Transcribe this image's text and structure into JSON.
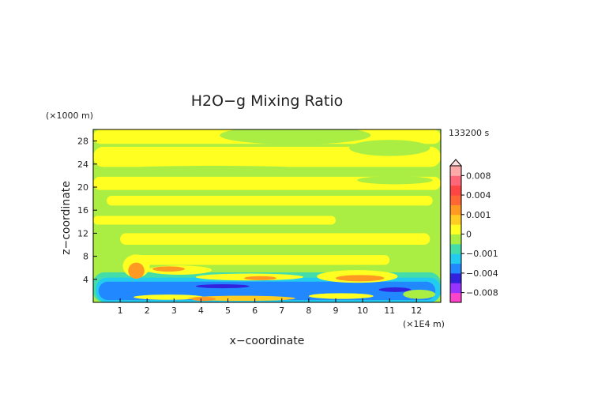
{
  "chart_data": {
    "type": "heatmap",
    "title": "H2O−g Mixing Ratio",
    "xlabel": "x−coordinate",
    "ylabel": "z−coordinate",
    "x_unit": "(×1E4 m)",
    "y_unit": "(×1000 m)",
    "time_label": "133200 s",
    "xlim": [
      0,
      12.9
    ],
    "ylim": [
      0,
      30
    ],
    "x_ticks": [
      "1",
      "2",
      "3",
      "4",
      "5",
      "6",
      "7",
      "8",
      "9",
      "10",
      "11",
      "12"
    ],
    "y_ticks": [
      "4",
      "8",
      "12",
      "16",
      "20",
      "24",
      "28"
    ],
    "colorbar": {
      "labels": [
        "0.008",
        "0.004",
        "0.001",
        "0",
        "−0.001",
        "−0.004",
        "−0.008"
      ],
      "label_values": [
        0.008,
        0.004,
        0.001,
        0,
        -0.001,
        -0.004,
        -0.008
      ],
      "levels": [
        -0.01,
        -0.008,
        -0.006,
        -0.004,
        -0.002,
        -0.001,
        -0.0005,
        0,
        0.0005,
        0.001,
        0.002,
        0.004,
        0.006,
        0.008,
        0.01
      ],
      "colors": [
        "#ff44cc",
        "#9933ff",
        "#3322dd",
        "#2288ff",
        "#22ccee",
        "#44ddaa",
        "#aaee44",
        "#ffff22",
        "#ffcc22",
        "#ff9922",
        "#ff6633",
        "#ff4444",
        "#ff6677",
        "#ffaaaa"
      ]
    },
    "field": {
      "background": "#aaee44",
      "x_range": [
        0,
        12.9
      ],
      "z_range": [
        0,
        30
      ],
      "regions": [
        {
          "kind": "band",
          "z0": 27.5,
          "z1": 30,
          "x0": 0,
          "x1": 12.9,
          "color": "#ffff22"
        },
        {
          "kind": "band",
          "z0": 23.5,
          "z1": 27,
          "x0": 0,
          "x1": 12.9,
          "color": "#ffff22"
        },
        {
          "kind": "band",
          "z0": 19.5,
          "z1": 21.8,
          "x0": 0,
          "x1": 12.9,
          "color": "#ffff22"
        },
        {
          "kind": "band",
          "z0": 16.8,
          "z1": 18.5,
          "x0": 0.5,
          "x1": 12.6,
          "color": "#ffff22"
        },
        {
          "kind": "band",
          "z0": 13.5,
          "z1": 15,
          "x0": 0,
          "x1": 9,
          "color": "#ffff22"
        },
        {
          "kind": "band",
          "z0": 10,
          "z1": 12,
          "x0": 1,
          "x1": 12.5,
          "color": "#ffff22"
        },
        {
          "kind": "band",
          "z0": 6.5,
          "z1": 8.2,
          "x0": 1.5,
          "x1": 11,
          "color": "#ffff22"
        },
        {
          "kind": "blob",
          "x": 7.5,
          "z": 29,
          "rx": 2.8,
          "rz": 1.6,
          "color": "#aaee44"
        },
        {
          "kind": "blob",
          "x": 11,
          "z": 26.8,
          "rx": 1.5,
          "rz": 1.4,
          "color": "#aaee44"
        },
        {
          "kind": "blob",
          "x": 4.5,
          "z": 23,
          "rx": 4,
          "rz": 0.7,
          "color": "#aaee44"
        },
        {
          "kind": "blob",
          "x": 11.2,
          "z": 21.2,
          "rx": 1.4,
          "rz": 0.7,
          "color": "#aaee44"
        },
        {
          "kind": "band",
          "z0": 0,
          "z1": 5.2,
          "x0": 0,
          "x1": 12.9,
          "color": "#44ddaa"
        },
        {
          "kind": "band",
          "z0": 0,
          "z1": 4.3,
          "x0": 0.1,
          "x1": 12.9,
          "color": "#22ccee"
        },
        {
          "kind": "band",
          "z0": 0.4,
          "z1": 3.6,
          "x0": 0.2,
          "x1": 12.7,
          "color": "#2288ff"
        },
        {
          "kind": "blob",
          "x": 4.8,
          "z": 2.8,
          "rx": 1,
          "rz": 0.35,
          "color": "#3322dd"
        },
        {
          "kind": "blob",
          "x": 11.2,
          "z": 2.2,
          "rx": 0.6,
          "rz": 0.4,
          "color": "#3322dd"
        },
        {
          "kind": "blob",
          "x": 1.6,
          "z": 6.3,
          "rx": 0.5,
          "rz": 2,
          "color": "#ffff22"
        },
        {
          "kind": "blob",
          "x": 1.6,
          "z": 5.5,
          "rx": 0.3,
          "rz": 1.4,
          "color": "#ff9922"
        },
        {
          "kind": "blob",
          "x": 3.2,
          "z": 5.6,
          "rx": 1.2,
          "rz": 0.8,
          "color": "#ffff22"
        },
        {
          "kind": "blob",
          "x": 2.8,
          "z": 5.8,
          "rx": 0.6,
          "rz": 0.45,
          "color": "#ff9922"
        },
        {
          "kind": "blob",
          "x": 5.8,
          "z": 4.4,
          "rx": 2,
          "rz": 0.6,
          "color": "#ffff22"
        },
        {
          "kind": "blob",
          "x": 6.2,
          "z": 4.2,
          "rx": 0.6,
          "rz": 0.35,
          "color": "#ff9922"
        },
        {
          "kind": "blob",
          "x": 9.8,
          "z": 4.5,
          "rx": 1.5,
          "rz": 1.1,
          "color": "#ffff22"
        },
        {
          "kind": "blob",
          "x": 9.9,
          "z": 4.2,
          "rx": 0.9,
          "rz": 0.55,
          "color": "#ff9922"
        },
        {
          "kind": "blob",
          "x": 2.8,
          "z": 0.9,
          "rx": 1.3,
          "rz": 0.45,
          "color": "#ffff22"
        },
        {
          "kind": "blob",
          "x": 5.5,
          "z": 0.7,
          "rx": 2,
          "rz": 0.45,
          "color": "#ffcc22"
        },
        {
          "kind": "blob",
          "x": 4.1,
          "z": 0.6,
          "rx": 0.45,
          "rz": 0.35,
          "color": "#ff9922"
        },
        {
          "kind": "blob",
          "x": 9.2,
          "z": 1.1,
          "rx": 1.2,
          "rz": 0.5,
          "color": "#ffff22"
        },
        {
          "kind": "blob",
          "x": 12.1,
          "z": 1.4,
          "rx": 0.6,
          "rz": 0.8,
          "color": "#aaee44"
        }
      ]
    }
  }
}
